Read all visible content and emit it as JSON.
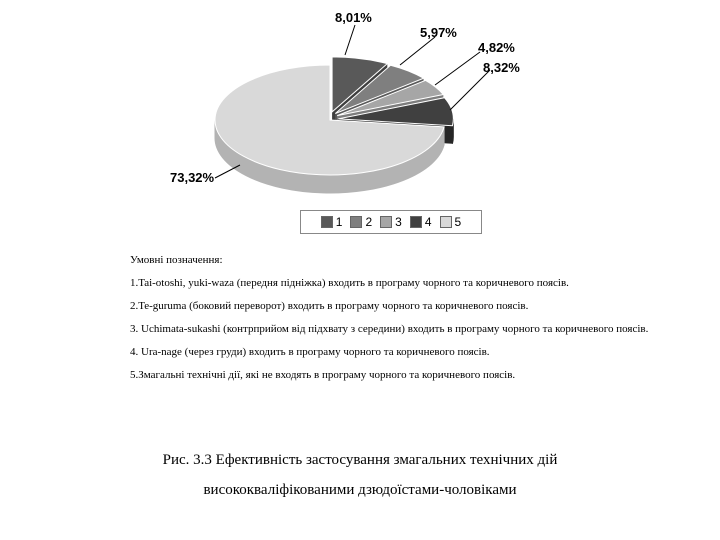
{
  "chart": {
    "type": "pie-3d",
    "slices": [
      {
        "id": 1,
        "value": 8.01,
        "label": "8,01%",
        "fill": "#595959",
        "side": "#3f3f3f"
      },
      {
        "id": 2,
        "value": 5.97,
        "label": "5,97%",
        "fill": "#7f7f7f",
        "side": "#5a5a5a"
      },
      {
        "id": 3,
        "value": 4.82,
        "label": "4,82%",
        "fill": "#a6a6a6",
        "side": "#7d7d7d"
      },
      {
        "id": 4,
        "value": 8.32,
        "label": "8,32%",
        "fill": "#404040",
        "side": "#262626"
      },
      {
        "id": 5,
        "value": 73.32,
        "label": "73,32%",
        "fill": "#d9d9d9",
        "side": "#b3b3b3"
      }
    ],
    "label_fontsize": 13,
    "label_fontweight": "bold",
    "background_color": "#ffffff",
    "border_color": "#888888"
  },
  "legend": {
    "items": [
      {
        "swatch": "#595959",
        "label": "1"
      },
      {
        "swatch": "#7f7f7f",
        "label": "2"
      },
      {
        "swatch": "#a6a6a6",
        "label": "3"
      },
      {
        "swatch": "#404040",
        "label": "4"
      },
      {
        "swatch": "#d9d9d9",
        "label": "5"
      }
    ],
    "marker": "■"
  },
  "notes": {
    "heading": "Умовні позначення:",
    "items": [
      "1.Tai-otoshi, yuki-waza (передня підніжка) входить в програму чорного та коричневого поясів.",
      "2.Te-guruma (боковий переворот) входить в програму чорного та коричневого поясів.",
      "3. Uchimata-sukashi (контрприйом від підхвату з середини) входить в програму чорного та коричневого поясів.",
      "4. Ura-nage (через груди) входить в програму чорного та коричневого поясів.",
      "5.Змагальні технічні дії, які не входять в програму чорного та коричневого поясів."
    ]
  },
  "caption": {
    "line1": "Рис. 3.3 Ефективність застосування змагальних технічних дій",
    "line2": "висококваліфікованими дзюдоїстами-чоловіками"
  }
}
